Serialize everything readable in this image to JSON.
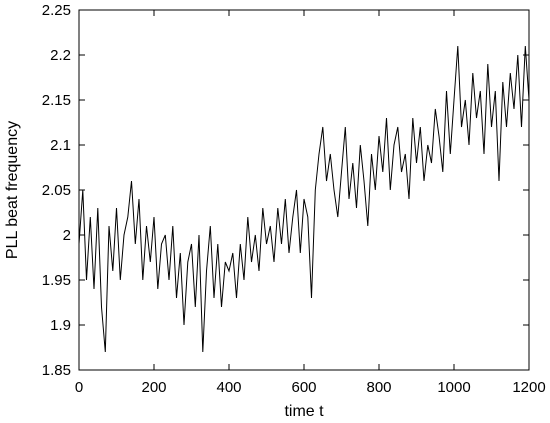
{
  "chart_data": {
    "type": "line",
    "title": "",
    "xlabel": "time t",
    "ylabel": "PLL beat frequency",
    "xlim": [
      0,
      1200
    ],
    "ylim": [
      1.85,
      2.25
    ],
    "x_ticks": [
      0,
      200,
      400,
      600,
      800,
      1000,
      1200
    ],
    "y_ticks": [
      1.85,
      1.9,
      1.95,
      2,
      2.05,
      2.1,
      2.15,
      2.2,
      2.25
    ],
    "x_tick_labels": [
      "0",
      "200",
      "400",
      "600",
      "800",
      "1000",
      "1200"
    ],
    "y_tick_labels": [
      "1.85",
      "1.9",
      "1.95",
      "2",
      "2.05",
      "2.1",
      "2.15",
      "2.2",
      "2.25"
    ],
    "grid": false,
    "legend": "none",
    "line_color": "#000000",
    "series": [
      {
        "x": [
          0,
          10,
          20,
          30,
          40,
          50,
          60,
          70,
          80,
          90,
          100,
          110,
          120,
          130,
          140,
          150,
          160,
          170,
          180,
          190,
          200,
          210,
          220,
          230,
          240,
          250,
          260,
          270,
          280,
          290,
          300,
          310,
          320,
          330,
          340,
          350,
          360,
          370,
          380,
          390,
          400,
          410,
          420,
          430,
          440,
          450,
          460,
          470,
          480,
          490,
          500,
          510,
          520,
          530,
          540,
          550,
          560,
          570,
          580,
          590,
          600,
          610,
          620,
          630,
          640,
          650,
          660,
          670,
          680,
          690,
          700,
          710,
          720,
          730,
          740,
          750,
          760,
          770,
          780,
          790,
          800,
          810,
          820,
          830,
          840,
          850,
          860,
          870,
          880,
          890,
          900,
          910,
          920,
          930,
          940,
          950,
          960,
          970,
          980,
          990,
          1000,
          1010,
          1020,
          1030,
          1040,
          1050,
          1060,
          1070,
          1080,
          1090,
          1100,
          1110,
          1120,
          1130,
          1140,
          1150,
          1160,
          1170,
          1180,
          1190,
          1200
        ],
        "values": [
          1.99,
          2.05,
          1.95,
          2.02,
          1.94,
          2.03,
          1.92,
          1.87,
          2.01,
          1.96,
          2.03,
          1.95,
          2.0,
          2.02,
          2.06,
          1.99,
          2.04,
          1.95,
          2.01,
          1.97,
          2.02,
          1.94,
          1.99,
          2.0,
          1.95,
          2.01,
          1.93,
          1.98,
          1.9,
          1.97,
          1.99,
          1.92,
          2.0,
          1.87,
          1.96,
          2.01,
          1.93,
          1.99,
          1.92,
          1.97,
          1.96,
          1.98,
          1.93,
          1.99,
          1.95,
          2.02,
          1.97,
          2.0,
          1.96,
          2.03,
          1.99,
          2.01,
          1.97,
          2.03,
          1.99,
          2.04,
          1.98,
          2.02,
          2.05,
          1.98,
          2.04,
          2.02,
          1.93,
          2.05,
          2.09,
          2.12,
          2.06,
          2.09,
          2.05,
          2.02,
          2.07,
          2.12,
          2.04,
          2.08,
          2.03,
          2.1,
          2.06,
          2.01,
          2.09,
          2.05,
          2.11,
          2.07,
          2.13,
          2.05,
          2.1,
          2.12,
          2.07,
          2.09,
          2.04,
          2.13,
          2.08,
          2.12,
          2.06,
          2.1,
          2.08,
          2.14,
          2.11,
          2.07,
          2.16,
          2.09,
          2.15,
          2.21,
          2.12,
          2.15,
          2.1,
          2.18,
          2.13,
          2.16,
          2.09,
          2.19,
          2.12,
          2.16,
          2.06,
          2.17,
          2.12,
          2.18,
          2.14,
          2.2,
          2.12,
          2.21,
          2.15
        ]
      }
    ]
  }
}
